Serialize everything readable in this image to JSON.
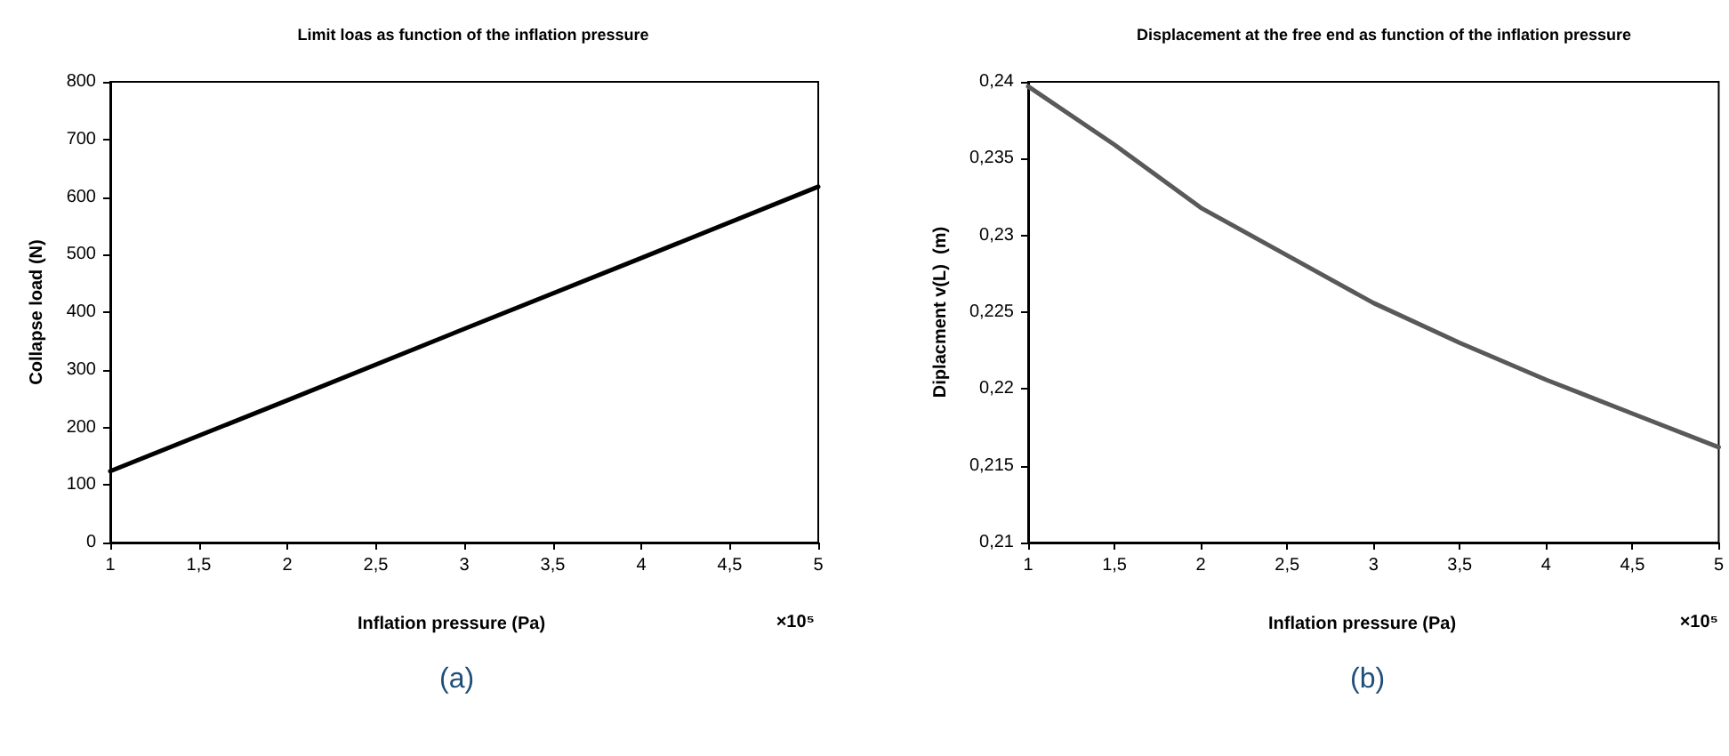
{
  "chart_data": [
    {
      "type": "line",
      "title": "Limit loas as function of the inflation pressure",
      "xlabel": "Inflation pressure (Pa)",
      "ylabel": "Collapse load (N)",
      "annotations": [
        "×10⁵",
        "(a)"
      ],
      "x": [
        1,
        2,
        3,
        4,
        5
      ],
      "series": [
        {
          "color": "#000000",
          "values": [
            124,
            247,
            371,
            494,
            618
          ]
        }
      ],
      "xlim": [
        1,
        5
      ],
      "xticks": [
        1,
        {
          "value": 1.5,
          "label": "1,5"
        },
        2,
        {
          "value": 2.5,
          "label": "2,5"
        },
        3,
        {
          "value": 3.5,
          "label": "3,5"
        },
        4,
        {
          "value": 4.5,
          "label": "4,5"
        },
        5
      ],
      "ylim": [
        0,
        800
      ],
      "yticks": [
        0,
        100,
        200,
        300,
        400,
        500,
        600,
        700,
        800
      ],
      "grid": false,
      "marker": "none"
    },
    {
      "type": "line",
      "title": "Displacement at the free end as function of the inflation pressure",
      "xlabel": "Inflation pressure (Pa)",
      "ylabel": "Diplacment v(L)  (m)",
      "annotations": [
        "×10⁵",
        "(b)"
      ],
      "x": [
        1,
        1.5,
        2,
        2.5,
        3,
        3.5,
        4,
        4.5,
        5
      ],
      "series": [
        {
          "color": "#595959",
          "values": [
            0.2397,
            0.2359,
            0.2318,
            0.2287,
            0.2256,
            0.223,
            0.2206,
            0.2184,
            0.2162
          ]
        }
      ],
      "xlim": [
        1,
        5
      ],
      "xticks": [
        1,
        {
          "value": 1.5,
          "label": "1,5"
        },
        2,
        {
          "value": 2.5,
          "label": "2,5"
        },
        3,
        {
          "value": 3.5,
          "label": "3,5"
        },
        4,
        {
          "value": 4.5,
          "label": "4,5"
        },
        5
      ],
      "ylim": [
        0.21,
        0.24
      ],
      "yticks": [
        {
          "value": 0.21,
          "label": "0,21"
        },
        {
          "value": 0.215,
          "label": "0,215"
        },
        {
          "value": 0.22,
          "label": "0,22"
        },
        {
          "value": 0.225,
          "label": "0,225"
        },
        {
          "value": 0.23,
          "label": "0,23"
        },
        {
          "value": 0.235,
          "label": "0,235"
        },
        {
          "value": 0.24,
          "label": "0,24"
        }
      ],
      "grid": false,
      "marker": "none"
    }
  ]
}
